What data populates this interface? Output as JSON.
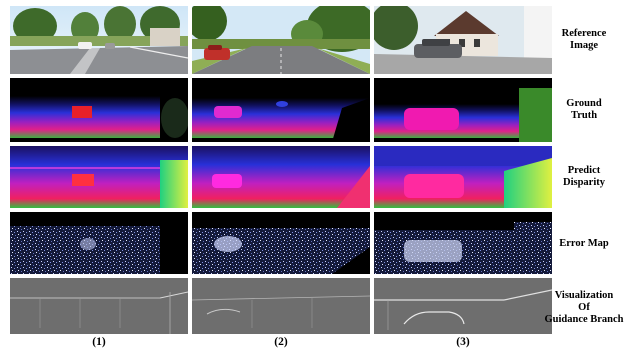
{
  "row_labels": [
    "Reference\nImage",
    "Ground\nTruth",
    "Predict\nDisparity",
    "Error Map",
    "Visualization\nOf\nGuidance Branch"
  ],
  "column_labels": [
    "(1)",
    "(2)",
    "(3)"
  ]
}
